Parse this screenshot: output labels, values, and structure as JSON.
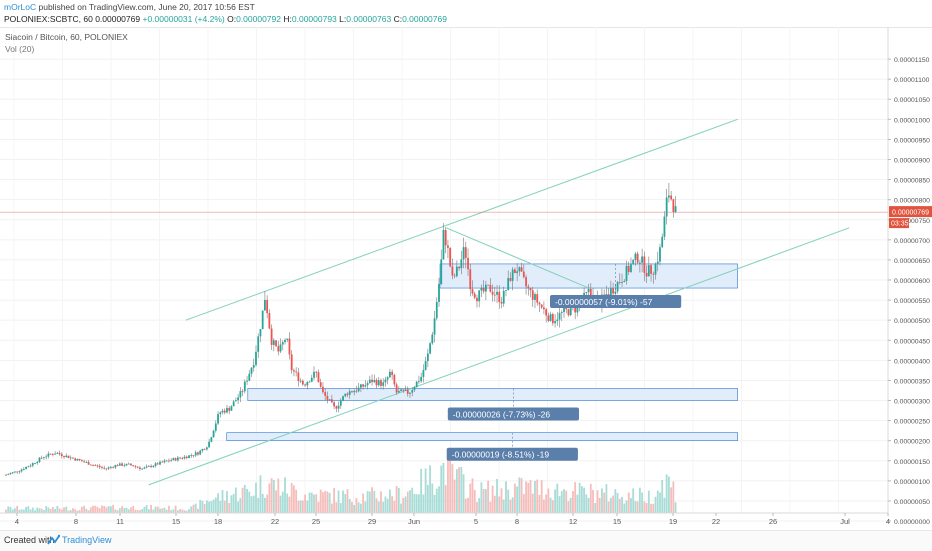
{
  "header": {
    "author": "mOrLoC",
    "publish_text": "published on TradingView.com, June 20, 2017 10:56 EST",
    "symbol": "POLONIEX:SCBTC, 60",
    "last": "0.00000769",
    "change": "+0.00000031 (+4.2%)",
    "open_label": "O:",
    "open": "0.00000792",
    "high_label": "H:",
    "high": "0.00000793",
    "low_label": "L:",
    "low": "0.00000763",
    "close_label": "C:",
    "close": "0.00000769"
  },
  "legend": {
    "title": "Siacoin / Bitcoin, 60, POLONIEX",
    "volume": "Vol (20)"
  },
  "footer": {
    "created_with": "Created with",
    "brand": "TradingView"
  },
  "colors": {
    "candle_up": "#26a69a",
    "candle_down": "#ef5350",
    "wick": "#777777",
    "trend_line": "#7fd1b9",
    "zone_fill": "#ddeafa",
    "zone_border": "#2f76d2",
    "price_line": "#e57373",
    "price_badge": "#e0533d",
    "measure_badge": "#5b7fab",
    "volume_up": "#9fd8d2",
    "volume_down": "#f4b6b4"
  },
  "chart_data": {
    "type": "candlestick",
    "title": "Siacoin / Bitcoin, 60, POLONIEX",
    "x_tick_labels": [
      "4",
      "8",
      "11",
      "15",
      "18",
      "22",
      "25",
      "29",
      "Jun",
      "5",
      "8",
      "12",
      "15",
      "19",
      "22",
      "26",
      "Jul",
      "4"
    ],
    "y_tick_labels": [
      "0.00001150",
      "0.00001100",
      "0.00001050",
      "0.00001000",
      "0.00000950",
      "0.00000900",
      "0.00000850",
      "0.00000800",
      "0.00000750",
      "0.00000700",
      "0.00000650",
      "0.00000600",
      "0.00000550",
      "0.00000500",
      "0.00000450",
      "0.00000400",
      "0.00000350",
      "0.00000300",
      "0.00000250",
      "0.00000200",
      "0.00000150",
      "0.00000100",
      "0.00000050",
      "0.00000000"
    ],
    "ylim": [
      2e-07,
      1.19e-05
    ],
    "current_price_label": "0.00000769",
    "countdown_label": "03:35",
    "price_path": [
      [
        0.0,
        1.15e-06
      ],
      [
        1.0,
        1.25e-06
      ],
      [
        2.0,
        1.4e-06
      ],
      [
        3.0,
        1.6e-06
      ],
      [
        4.0,
        1.7e-06
      ],
      [
        5.0,
        1.6e-06
      ],
      [
        6.0,
        1.5e-06
      ],
      [
        7.0,
        1.4e-06
      ],
      [
        8.0,
        1.3e-06
      ],
      [
        9.0,
        1.4e-06
      ],
      [
        10.0,
        1.4e-06
      ],
      [
        11.0,
        1.3e-06
      ],
      [
        12.0,
        1.4e-06
      ],
      [
        13.0,
        1.5e-06
      ],
      [
        14.5,
        1.6e-06
      ],
      [
        15.5,
        1.7e-06
      ],
      [
        16.3,
        1.9e-06
      ],
      [
        17.2,
        2.7e-06
      ],
      [
        18.0,
        2.8e-06
      ],
      [
        19.0,
        3.2e-06
      ],
      [
        20.0,
        4e-06
      ],
      [
        20.6,
        5e-06
      ],
      [
        20.9,
        5.6e-06
      ],
      [
        21.4,
        4.5e-06
      ],
      [
        22.0,
        4.2e-06
      ],
      [
        22.6,
        4.6e-06
      ],
      [
        23.0,
        3.8e-06
      ],
      [
        24.0,
        3.4e-06
      ],
      [
        25.0,
        3.7e-06
      ],
      [
        25.5,
        3.2e-06
      ],
      [
        26.5,
        2.8e-06
      ],
      [
        27.5,
        3.2e-06
      ],
      [
        28.5,
        3.3e-06
      ],
      [
        29.5,
        3.5e-06
      ],
      [
        30.5,
        3.4e-06
      ],
      [
        31.0,
        3.7e-06
      ],
      [
        31.5,
        3.2e-06
      ],
      [
        32.5,
        3.2e-06
      ],
      [
        33.5,
        3.6e-06
      ],
      [
        34.0,
        4.1e-06
      ],
      [
        34.5,
        4.9e-06
      ],
      [
        35.0,
        6.1e-06
      ],
      [
        35.3,
        7.2e-06
      ],
      [
        35.6,
        6.8e-06
      ],
      [
        36.0,
        6e-06
      ],
      [
        36.5,
        6.3e-06
      ],
      [
        37.0,
        6.8e-06
      ],
      [
        37.5,
        5.8e-06
      ],
      [
        38.0,
        5.6e-06
      ],
      [
        39.0,
        5.8e-06
      ],
      [
        40.0,
        5.5e-06
      ],
      [
        40.7,
        6.1e-06
      ],
      [
        41.2,
        6.3e-06
      ],
      [
        42.0,
        5.8e-06
      ],
      [
        43.0,
        5.4e-06
      ],
      [
        44.0,
        5e-06
      ],
      [
        45.0,
        5.2e-06
      ],
      [
        46.0,
        5.3e-06
      ],
      [
        47.0,
        5.7e-06
      ],
      [
        47.8,
        5.4e-06
      ],
      [
        48.3,
        5.6e-06
      ],
      [
        49.0,
        5.8e-06
      ],
      [
        49.8,
        6.1e-06
      ],
      [
        50.5,
        6.4e-06
      ],
      [
        51.0,
        6.6e-06
      ],
      [
        51.7,
        6.2e-06
      ],
      [
        52.3,
        6.3e-06
      ],
      [
        52.8,
        6.8e-06
      ],
      [
        53.1,
        7.5e-06
      ],
      [
        53.4,
        8.2e-06
      ],
      [
        53.7,
        8e-06
      ],
      [
        54.0,
        7.7e-06
      ]
    ],
    "volume_profile": [
      [
        0,
        0.1
      ],
      [
        5,
        0.1
      ],
      [
        10,
        0.12
      ],
      [
        15,
        0.1
      ],
      [
        16.5,
        0.3
      ],
      [
        20,
        0.5
      ],
      [
        21,
        0.65
      ],
      [
        24,
        0.4
      ],
      [
        28,
        0.35
      ],
      [
        32,
        0.4
      ],
      [
        35,
        0.85
      ],
      [
        35.4,
        1.0
      ],
      [
        36,
        0.8
      ],
      [
        38,
        0.45
      ],
      [
        42,
        0.55
      ],
      [
        46,
        0.45
      ],
      [
        49,
        0.4
      ],
      [
        52,
        0.35
      ],
      [
        53.3,
        0.7
      ],
      [
        54,
        0.45
      ]
    ],
    "trend_channel": {
      "upper": [
        [
          14.5,
          5e-06
        ],
        [
          59.0,
          1e-05
        ]
      ],
      "lower": [
        [
          11.5,
          9e-07
        ],
        [
          68.0,
          7.3e-06
        ]
      ],
      "wedge": [
        [
          35.5,
          7.3e-06
        ],
        [
          47.0,
          5.8e-06
        ]
      ]
    },
    "zones": [
      {
        "from": 35.0,
        "to": 59.0,
        "y_top": 6.4e-06,
        "y_bottom": 5.8e-06,
        "label": "-0.00000057 (-9.01%) -57"
      },
      {
        "from": 19.5,
        "to": 59.0,
        "y_top": 3.3e-06,
        "y_bottom": 3e-06,
        "label": "-0.00000026 (-7.73%) -26"
      },
      {
        "from": 17.8,
        "to": 59.0,
        "y_top": 2.2e-06,
        "y_bottom": 2e-06,
        "label": "-0.00000019 (-8.51%) -19"
      }
    ]
  }
}
